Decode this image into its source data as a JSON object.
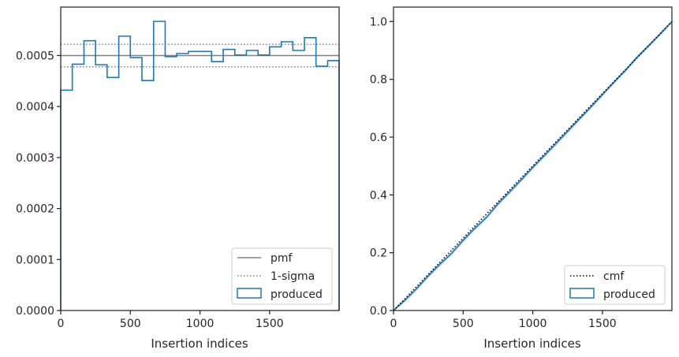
{
  "chart_data": [
    {
      "type": "line",
      "subtype": "step-histogram",
      "xlabel": "Insertion indices",
      "ylabel": "",
      "xlim": [
        0,
        1999
      ],
      "ylim": [
        0,
        0.000595
      ],
      "xticks": [
        0,
        500,
        1000,
        1500
      ],
      "xtick_labels": [
        "0",
        "500",
        "1000",
        "1500"
      ],
      "yticks": [
        0,
        0.0001,
        0.0002,
        0.0003,
        0.0004,
        0.0005
      ],
      "ytick_labels": [
        "0.0000",
        "0.0001",
        "0.0002",
        "0.0003",
        "0.0004",
        "0.0005"
      ],
      "grid": false,
      "legend_position": "lower-right",
      "legend": [
        "pmf",
        "1-sigma",
        "produced"
      ],
      "series": [
        {
          "name": "pmf",
          "style": "solid",
          "color": "#808080",
          "y": 0.0005
        },
        {
          "name": "1-sigma",
          "style": "dotted",
          "color": "#808080",
          "y": [
            0.000478,
            0.000522
          ]
        },
        {
          "name": "produced",
          "style": "step",
          "color": "#1f77b4",
          "bin_edges": [
            0,
            83,
            167,
            250,
            333,
            417,
            500,
            583,
            667,
            750,
            833,
            917,
            1000,
            1083,
            1167,
            1250,
            1333,
            1417,
            1500,
            1583,
            1667,
            1750,
            1833,
            1917,
            1999
          ],
          "values": [
            0.000432,
            0.000483,
            0.000529,
            0.000482,
            0.000457,
            0.000538,
            0.000496,
            0.000451,
            0.000567,
            0.000498,
            0.000504,
            0.000508,
            0.000508,
            0.000488,
            0.000512,
            0.000501,
            0.00051,
            0.000501,
            0.000517,
            0.000527,
            0.00051,
            0.000535,
            0.000479,
            0.00049
          ]
        }
      ]
    },
    {
      "type": "line",
      "subtype": "cumulative",
      "xlabel": "Insertion indices",
      "ylabel": "",
      "xlim": [
        0,
        1999
      ],
      "ylim": [
        0,
        1.05
      ],
      "xticks": [
        0,
        500,
        1000,
        1500
      ],
      "xtick_labels": [
        "0",
        "500",
        "1000",
        "1500"
      ],
      "yticks": [
        0,
        0.2,
        0.4,
        0.6,
        0.8,
        1.0
      ],
      "ytick_labels": [
        "0.0",
        "0.2",
        "0.4",
        "0.6",
        "0.8",
        "1.0"
      ],
      "grid": false,
      "legend_position": "lower-right",
      "legend": [
        "cmf",
        "produced"
      ],
      "series": [
        {
          "name": "cmf",
          "style": "dotted",
          "color": "#000000",
          "x": [
            0,
            1999
          ],
          "y": [
            0,
            1.0
          ]
        },
        {
          "name": "produced",
          "style": "line",
          "color": "#1f77b4",
          "x": [
            0,
            83,
            167,
            250,
            333,
            417,
            500,
            583,
            667,
            750,
            833,
            917,
            1000,
            1083,
            1167,
            1250,
            1333,
            1417,
            1500,
            1583,
            1667,
            1750,
            1833,
            1917,
            1999
          ],
          "y": [
            0,
            0.036,
            0.076,
            0.12,
            0.16,
            0.198,
            0.243,
            0.284,
            0.322,
            0.369,
            0.41,
            0.452,
            0.495,
            0.536,
            0.578,
            0.62,
            0.662,
            0.704,
            0.747,
            0.79,
            0.832,
            0.877,
            0.917,
            0.958,
            1.0
          ]
        }
      ]
    }
  ]
}
